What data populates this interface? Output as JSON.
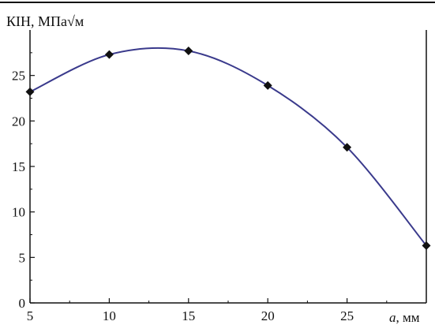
{
  "chart_data": {
    "type": "line",
    "title": "",
    "ylabel": "КІН, МПа√м",
    "xlabel_var": "a",
    "xlabel_unit": ", мм",
    "xlim": [
      5,
      30
    ],
    "ylim": [
      0,
      30
    ],
    "xticks": [
      "5",
      "10",
      "15",
      "20",
      "25"
    ],
    "yticks": [
      "0",
      "5",
      "10",
      "15",
      "20",
      "25"
    ],
    "grid": false,
    "series": [
      {
        "x": [
          5,
          10,
          15,
          20,
          25,
          30
        ],
        "y": [
          23.2,
          27.3,
          27.7,
          23.9,
          17.1,
          6.3
        ],
        "marker": "diamond",
        "line_color": "#3a3a8c",
        "marker_color": "#111111"
      }
    ]
  }
}
